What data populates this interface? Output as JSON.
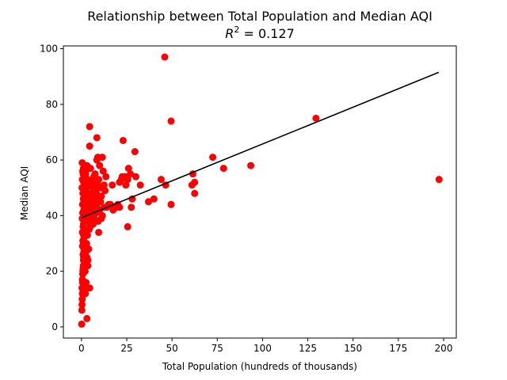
{
  "chart_data": {
    "type": "scatter",
    "title": "Relationship between Total Population and Median AQI",
    "subtitle_prefix": "R",
    "subtitle_sup": "2",
    "subtitle_value": " = 0.127",
    "xlabel": "Total Population (hundreds of thousands)",
    "ylabel": "Median AQI",
    "xlim": [
      -10,
      207
    ],
    "ylim": [
      -4,
      101
    ],
    "xticks": [
      0,
      25,
      50,
      75,
      100,
      125,
      150,
      175,
      200
    ],
    "yticks": [
      0,
      20,
      40,
      60,
      80,
      100
    ],
    "grid": false,
    "point_color": "#ff0000",
    "line_color": "#000000",
    "trendline": {
      "x": [
        0.1,
        197.3
      ],
      "y": [
        39.3,
        91.5
      ]
    },
    "points": [
      [
        0.1,
        1
      ],
      [
        0.2,
        6
      ],
      [
        0.3,
        8
      ],
      [
        0.4,
        10
      ],
      [
        0.5,
        12
      ],
      [
        0.3,
        14
      ],
      [
        0.6,
        16
      ],
      [
        0.5,
        17
      ],
      [
        0.7,
        19
      ],
      [
        0.8,
        20
      ],
      [
        0.9,
        21
      ],
      [
        1.0,
        22
      ],
      [
        1.1,
        24
      ],
      [
        1.2,
        25
      ],
      [
        0.9,
        26
      ],
      [
        1.3,
        27
      ],
      [
        1.5,
        28
      ],
      [
        0.6,
        29
      ],
      [
        1.0,
        30
      ],
      [
        0.8,
        31
      ],
      [
        1.4,
        32
      ],
      [
        1.2,
        33
      ],
      [
        0.5,
        34
      ],
      [
        1.6,
        35
      ],
      [
        0.9,
        36
      ],
      [
        1.1,
        37
      ],
      [
        2.0,
        38
      ],
      [
        0.4,
        39
      ],
      [
        1.7,
        40
      ],
      [
        0.7,
        41
      ],
      [
        1.3,
        42
      ],
      [
        2.2,
        43
      ],
      [
        0.6,
        44
      ],
      [
        1.9,
        45
      ],
      [
        1.0,
        46
      ],
      [
        2.4,
        47
      ],
      [
        0.8,
        48
      ],
      [
        1.5,
        49
      ],
      [
        0.3,
        50
      ],
      [
        2.1,
        51
      ],
      [
        1.2,
        52
      ],
      [
        0.5,
        53
      ],
      [
        1.8,
        54
      ],
      [
        0.9,
        55
      ],
      [
        0.7,
        56
      ],
      [
        1.1,
        57
      ],
      [
        0.4,
        59
      ],
      [
        2.5,
        27
      ],
      [
        3.0,
        25
      ],
      [
        3.5,
        24
      ],
      [
        4.0,
        28
      ],
      [
        2.8,
        30
      ],
      [
        3.3,
        33
      ],
      [
        4.2,
        35
      ],
      [
        3.8,
        38
      ],
      [
        2.6,
        40
      ],
      [
        4.5,
        41
      ],
      [
        3.1,
        43
      ],
      [
        2.9,
        45
      ],
      [
        4.1,
        46
      ],
      [
        3.6,
        48
      ],
      [
        2.7,
        50
      ],
      [
        4.3,
        51
      ],
      [
        3.4,
        53
      ],
      [
        2.3,
        55
      ],
      [
        3.9,
        57
      ],
      [
        3.0,
        58
      ],
      [
        2.0,
        20
      ],
      [
        2.5,
        16
      ],
      [
        1.8,
        14
      ],
      [
        2.2,
        12
      ],
      [
        3.0,
        3
      ],
      [
        4.5,
        14
      ],
      [
        3.5,
        22
      ],
      [
        4.8,
        36
      ],
      [
        5.0,
        40
      ],
      [
        5.5,
        42
      ],
      [
        6.0,
        44
      ],
      [
        6.5,
        45
      ],
      [
        5.2,
        47
      ],
      [
        5.8,
        48
      ],
      [
        6.2,
        50
      ],
      [
        7.0,
        51
      ],
      [
        5.4,
        52
      ],
      [
        6.8,
        54
      ],
      [
        7.5,
        55
      ],
      [
        5.0,
        57
      ],
      [
        6.0,
        46
      ],
      [
        7.2,
        43
      ],
      [
        8.0,
        41
      ],
      [
        8.5,
        44
      ],
      [
        9.0,
        46
      ],
      [
        7.8,
        49
      ],
      [
        8.8,
        52
      ],
      [
        9.5,
        53
      ],
      [
        8.2,
        48
      ],
      [
        7.0,
        39
      ],
      [
        9.2,
        38
      ],
      [
        6.5,
        37
      ],
      [
        10.0,
        42
      ],
      [
        10.5,
        45
      ],
      [
        11.0,
        47
      ],
      [
        10.2,
        50
      ],
      [
        11.5,
        40
      ],
      [
        11.0,
        39
      ],
      [
        12.5,
        43
      ],
      [
        4.5,
        72
      ],
      [
        4.5,
        65
      ],
      [
        8.5,
        68
      ],
      [
        8.5,
        60
      ],
      [
        9.0,
        61
      ],
      [
        10.0,
        58
      ],
      [
        11.5,
        61
      ],
      [
        12.0,
        56
      ],
      [
        12.5,
        51
      ],
      [
        13.0,
        49
      ],
      [
        13.5,
        54
      ],
      [
        14.0,
        43
      ],
      [
        15.0,
        44
      ],
      [
        16.0,
        44
      ],
      [
        17.0,
        51
      ],
      [
        17.5,
        42
      ],
      [
        19.0,
        43
      ],
      [
        20.0,
        44
      ],
      [
        21.0,
        43
      ],
      [
        21.0,
        52
      ],
      [
        22.0,
        53
      ],
      [
        22.5,
        54
      ],
      [
        23.0,
        67
      ],
      [
        24.0,
        54
      ],
      [
        24.5,
        51
      ],
      [
        25.5,
        53
      ],
      [
        26.0,
        57
      ],
      [
        27.0,
        55
      ],
      [
        27.5,
        43
      ],
      [
        28.0,
        46
      ],
      [
        29.5,
        63
      ],
      [
        30.0,
        54
      ],
      [
        25.5,
        36
      ],
      [
        9.5,
        34
      ],
      [
        32.5,
        51
      ],
      [
        37.0,
        45
      ],
      [
        40.0,
        46
      ],
      [
        44.0,
        53
      ],
      [
        46.5,
        51
      ],
      [
        46.0,
        97
      ],
      [
        49.5,
        74
      ],
      [
        49.5,
        44
      ],
      [
        61.0,
        51
      ],
      [
        61.5,
        55
      ],
      [
        62.5,
        52
      ],
      [
        62.5,
        48
      ],
      [
        72.5,
        61
      ],
      [
        78.5,
        57
      ],
      [
        93.5,
        58
      ],
      [
        129.5,
        75
      ],
      [
        197.5,
        53
      ]
    ]
  }
}
